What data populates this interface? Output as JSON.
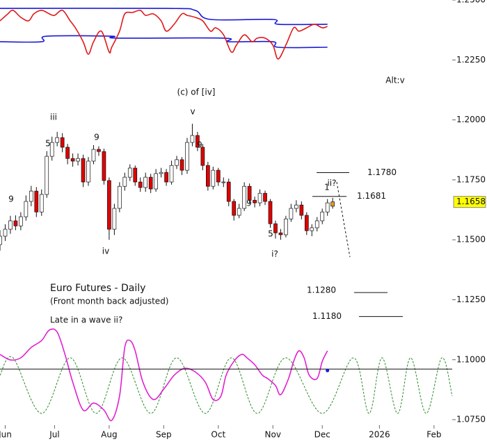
{
  "chart_data": {
    "type": "candlestick",
    "title": "Euro Futures - Daily",
    "subtitle": "(Front month back adjusted)",
    "note": "Late in a wave ii?",
    "xlim": [
      -2,
      172
    ],
    "ylim": [
      1.0727,
      1.25
    ],
    "xticks": [
      {
        "value": 0,
        "label": "Jun"
      },
      {
        "value": 19,
        "label": "Jul"
      },
      {
        "value": 40,
        "label": "Aug"
      },
      {
        "value": 61,
        "label": "Sep"
      },
      {
        "value": 82,
        "label": "Oct"
      },
      {
        "value": 103,
        "label": "Nov"
      },
      {
        "value": 122,
        "label": "Dec"
      },
      {
        "value": 144,
        "label": "2026"
      },
      {
        "value": 165,
        "label": "Feb"
      }
    ],
    "yticks": [
      {
        "value": 1.075,
        "label": "1.0750"
      },
      {
        "value": 1.1,
        "label": "1.1000"
      },
      {
        "value": 1.125,
        "label": "1.1250"
      },
      {
        "value": 1.15,
        "label": "1.1500"
      },
      {
        "value": 1.175,
        "label": "1.1750"
      },
      {
        "value": 1.2,
        "label": "1.2000"
      },
      {
        "value": 1.225,
        "label": "1.2250"
      },
      {
        "value": 1.25,
        "label": "1.2500"
      }
    ],
    "up_color": "#ffffff",
    "down_color": "#e00000",
    "last_color": "#e0a020",
    "x": [
      -2,
      0,
      2,
      4,
      6,
      8,
      10,
      12,
      14,
      16,
      18,
      20,
      22,
      24,
      26,
      28,
      30,
      32,
      34,
      36,
      38,
      40,
      42,
      44,
      46,
      48,
      50,
      52,
      54,
      56,
      58,
      60,
      62,
      64,
      66,
      68,
      70,
      72,
      74,
      76,
      78,
      80,
      82,
      84,
      86,
      88,
      90,
      92,
      94,
      96,
      98,
      100,
      102,
      104,
      106,
      108,
      110,
      112,
      114,
      116,
      118,
      120,
      122,
      124,
      126
    ],
    "open": [
      1.148,
      1.1515,
      1.1544,
      1.1579,
      1.1558,
      1.1596,
      1.166,
      1.1703,
      1.1616,
      1.1689,
      1.1848,
      1.1906,
      1.1926,
      1.1886,
      1.1839,
      1.1828,
      1.1839,
      1.1741,
      1.1828,
      1.1877,
      1.1868,
      1.1747,
      1.1544,
      1.1631,
      1.1723,
      1.1761,
      1.1799,
      1.1741,
      1.1718,
      1.1761,
      1.1712,
      1.1776,
      1.1781,
      1.1741,
      1.181,
      1.1834,
      1.179,
      1.1906,
      1.1935,
      1.1886,
      1.181,
      1.1723,
      1.179,
      1.1741,
      1.1741,
      1.166,
      1.1602,
      1.1631,
      1.1723,
      1.1665,
      1.1654,
      1.1694,
      1.166,
      1.1567,
      1.1529,
      1.1521,
      1.1587,
      1.1631,
      1.1645,
      1.1602,
      1.1538,
      1.155,
      1.1579,
      1.1616,
      1.164
    ],
    "high": [
      1.154,
      1.1565,
      1.16,
      1.1602,
      1.1615,
      1.1685,
      1.1725,
      1.172,
      1.171,
      1.187,
      1.193,
      1.195,
      1.1945,
      1.19,
      1.186,
      1.186,
      1.1855,
      1.1845,
      1.1895,
      1.189,
      1.188,
      1.176,
      1.165,
      1.174,
      1.178,
      1.1815,
      1.181,
      1.176,
      1.178,
      1.1775,
      1.1795,
      1.18,
      1.1795,
      1.183,
      1.185,
      1.1845,
      1.1925,
      1.1984,
      1.195,
      1.19,
      1.1825,
      1.1805,
      1.18,
      1.176,
      1.1755,
      1.167,
      1.165,
      1.174,
      1.1735,
      1.168,
      1.171,
      1.1705,
      1.167,
      1.158,
      1.1545,
      1.16,
      1.165,
      1.1665,
      1.166,
      1.1615,
      1.1565,
      1.1595,
      1.163,
      1.167,
      1.1675
    ],
    "low": [
      1.1455,
      1.1495,
      1.1525,
      1.154,
      1.154,
      1.158,
      1.164,
      1.1595,
      1.16,
      1.1675,
      1.183,
      1.189,
      1.1865,
      1.1815,
      1.1805,
      1.181,
      1.172,
      1.1725,
      1.1815,
      1.185,
      1.173,
      1.15,
      1.152,
      1.1615,
      1.1705,
      1.1745,
      1.1725,
      1.17,
      1.17,
      1.1695,
      1.17,
      1.176,
      1.1725,
      1.173,
      1.1795,
      1.177,
      1.1775,
      1.189,
      1.187,
      1.179,
      1.1705,
      1.171,
      1.1725,
      1.172,
      1.164,
      1.158,
      1.159,
      1.162,
      1.165,
      1.1635,
      1.164,
      1.1645,
      1.155,
      1.1505,
      1.15,
      1.151,
      1.1575,
      1.1615,
      1.1585,
      1.152,
      1.1515,
      1.1535,
      1.1565,
      1.16,
      1.163
    ],
    "close": [
      1.1515,
      1.1544,
      1.1579,
      1.1558,
      1.1596,
      1.166,
      1.1703,
      1.1616,
      1.1689,
      1.1848,
      1.1906,
      1.1926,
      1.1886,
      1.1839,
      1.1828,
      1.1839,
      1.1741,
      1.1828,
      1.1877,
      1.1868,
      1.1747,
      1.1544,
      1.1631,
      1.1723,
      1.1761,
      1.1799,
      1.1741,
      1.1718,
      1.1761,
      1.1712,
      1.1776,
      1.1781,
      1.1741,
      1.181,
      1.1834,
      1.179,
      1.1906,
      1.1935,
      1.1886,
      1.181,
      1.1723,
      1.179,
      1.1741,
      1.1741,
      1.166,
      1.1602,
      1.1631,
      1.1723,
      1.1665,
      1.1654,
      1.1694,
      1.166,
      1.1567,
      1.1529,
      1.1521,
      1.1587,
      1.1631,
      1.1645,
      1.1602,
      1.1538,
      1.155,
      1.1579,
      1.1616,
      1.1654,
      1.1658
    ],
    "lines": [
      {
        "color": "#1a1ad8",
        "x": [
          -2,
          62,
          73,
          79,
          103,
          105,
          124
        ],
        "values": [
          1.2465,
          1.2465,
          1.2457,
          1.2419,
          1.2419,
          1.2399,
          1.2399
        ]
      },
      {
        "color": "#1a1ad8",
        "x": [
          -2,
          14,
          16,
          41,
          43,
          84,
          86,
          103,
          105,
          124
        ],
        "values": [
          1.2326,
          1.2326,
          1.2349,
          1.2349,
          1.2341,
          1.2341,
          1.2326,
          1.2326,
          1.2303,
          1.2303
        ]
      },
      {
        "color": "#e01818",
        "x": [
          -2,
          1,
          3,
          6,
          9,
          11,
          14,
          17,
          19,
          22,
          25,
          27,
          30,
          32,
          34,
          37,
          40,
          41,
          44,
          46,
          49,
          52,
          54,
          57,
          60,
          62,
          65,
          68,
          70,
          73,
          76,
          79,
          81,
          84,
          87,
          89,
          92,
          95,
          97,
          100,
          103,
          105,
          108,
          111,
          113,
          116,
          119,
          122,
          124
        ],
        "values": [
          1.2413,
          1.2442,
          1.2457,
          1.2428,
          1.2413,
          1.2442,
          1.2457,
          1.2442,
          1.2436,
          1.2457,
          1.2413,
          1.2384,
          1.2326,
          1.2274,
          1.2326,
          1.237,
          1.2283,
          1.2303,
          1.237,
          1.2442,
          1.2448,
          1.2457,
          1.2436,
          1.2442,
          1.2413,
          1.237,
          1.2399,
          1.2442,
          1.2436,
          1.2428,
          1.2413,
          1.237,
          1.2384,
          1.2355,
          1.2283,
          1.2312,
          1.2355,
          1.2326,
          1.2341,
          1.2341,
          1.2312,
          1.2254,
          1.2312,
          1.2384,
          1.237,
          1.2384,
          1.2399,
          1.2384,
          1.239
        ]
      },
      {
        "color": "#2a8a2a",
        "dashed": true,
        "x": [
          -2,
          3,
          14,
          25,
          35,
          45,
          56,
          66,
          77,
          87,
          97,
          108,
          122,
          134,
          140,
          145,
          151,
          156,
          162,
          168,
          172
        ],
        "values": [
          1.0935,
          1.1008,
          1.0776,
          1.1008,
          1.0776,
          1.1008,
          1.0776,
          1.1008,
          1.0776,
          1.1008,
          1.0776,
          1.1008,
          1.0776,
          1.1008,
          1.0776,
          1.1008,
          1.0776,
          1.1008,
          1.0776,
          1.1008,
          1.0848
        ]
      },
      {
        "color": "#e020d0",
        "x": [
          -2,
          2,
          6,
          10,
          14,
          17,
          20,
          23,
          26,
          30,
          34,
          38,
          41,
          44,
          46,
          48,
          50,
          53,
          57,
          61,
          65,
          69,
          73,
          77,
          80,
          83,
          85,
          88,
          91,
          93,
          96,
          99,
          101,
          104,
          106,
          109,
          111,
          113,
          115,
          117,
          120,
          122,
          124
        ],
        "values": [
          1.1022,
          1.0999,
          1.1008,
          1.1051,
          1.108,
          1.1124,
          1.1115,
          1.1022,
          1.0906,
          1.079,
          1.0819,
          1.079,
          1.0747,
          1.0848,
          1.1051,
          1.108,
          1.1037,
          1.0906,
          1.0834,
          1.0877,
          1.0935,
          1.0964,
          1.095,
          1.0906,
          1.0834,
          1.0848,
          1.0935,
          1.0993,
          1.1022,
          1.1008,
          1.0979,
          1.0935,
          1.0921,
          1.0892,
          1.0854,
          1.0921,
          1.0993,
          1.1037,
          1.1008,
          1.0935,
          1.0921,
          1.0993,
          1.1037
        ]
      }
    ],
    "baseline": 1.0961,
    "marker": {
      "x": 124,
      "value": 1.0955,
      "color": "#1a1ad8"
    },
    "levels": [
      {
        "value": 1.178,
        "label": "1.1780"
      },
      {
        "value": 1.1681,
        "label": "1.1681"
      },
      {
        "value": 1.128,
        "label": "1.1280"
      },
      {
        "value": 1.118,
        "label": "1.1180"
      }
    ],
    "current": {
      "value": 1.1658,
      "label": "1.1658",
      "color": "#ffff00"
    },
    "annotations": [
      {
        "text": "(c) of [iv]",
        "color": "#111111"
      },
      {
        "text": "v",
        "color": "#111111"
      },
      {
        "text": "iii",
        "color": "#111111"
      },
      {
        "text": "iv",
        "color": "#111111"
      },
      {
        "text": "i?",
        "color": "#111111"
      },
      {
        "text": "ii?",
        "color": "#111111"
      },
      {
        "text": "Alt:v",
        "color": "#111111"
      },
      {
        "text": "9",
        "color": "#e01818"
      },
      {
        "text": "5",
        "color": "#8a8a20"
      },
      {
        "text": "9",
        "color": "#e01818"
      },
      {
        "text": "9",
        "color": "#e01818"
      },
      {
        "text": "9",
        "color": "#2a2ad0"
      },
      {
        "text": "5",
        "color": "#8a8a20"
      },
      {
        "text": "1",
        "color": "#e01818"
      }
    ]
  }
}
